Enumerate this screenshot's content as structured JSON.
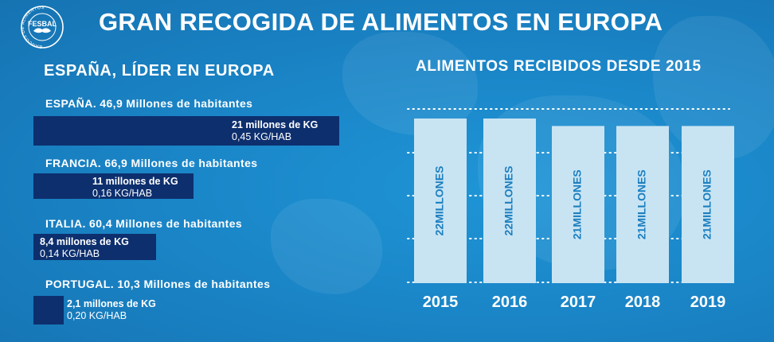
{
  "header": {
    "title": "GRAN RECOGIDA DE ALIMENTOS EN EUROPA",
    "logo_name": "FESBAL",
    "logo_ring_text": "BANCOS DE ALIMENTOS"
  },
  "left_panel": {
    "subtitle": "ESPAÑA, LÍDER EN EUROPA",
    "countries": [
      {
        "label": "ESPAÑA. 46,9 Millones de habitantes",
        "kg_label": "21 millones de KG",
        "per_hab": "0,45 KG/HAB",
        "kg_millions": 21
      },
      {
        "label": "FRANCIA. 66,9 Millones de habitantes",
        "kg_label": "11 millones de KG",
        "per_hab": "0,16 KG/HAB",
        "kg_millions": 11
      },
      {
        "label": "ITALIA. 60,4 Millones de habitantes",
        "kg_label": "8,4 millones de KG",
        "per_hab": "0,14 KG/HAB",
        "kg_millions": 8.4
      },
      {
        "label": "PORTUGAL. 10,3 Millones de habitantes",
        "kg_label": "2,1 millones de KG",
        "per_hab": "0,20 KG/HAB",
        "kg_millions": 2.1
      }
    ]
  },
  "chart_data": {
    "type": "bar",
    "title": "ALIMENTOS RECIBIDOS DESDE 2015",
    "categories": [
      "2015",
      "2016",
      "2017",
      "2018",
      "2019"
    ],
    "values": [
      22,
      22,
      21,
      21,
      21
    ],
    "bar_labels": [
      "22MILLONES",
      "22MILLONES",
      "21MILLONES",
      "21MILLONES",
      "21MILLONES"
    ],
    "grid": true,
    "colors": {
      "bar": "#c8e4f3",
      "label": "#1c7fbf",
      "grid": "#ffffff"
    }
  }
}
